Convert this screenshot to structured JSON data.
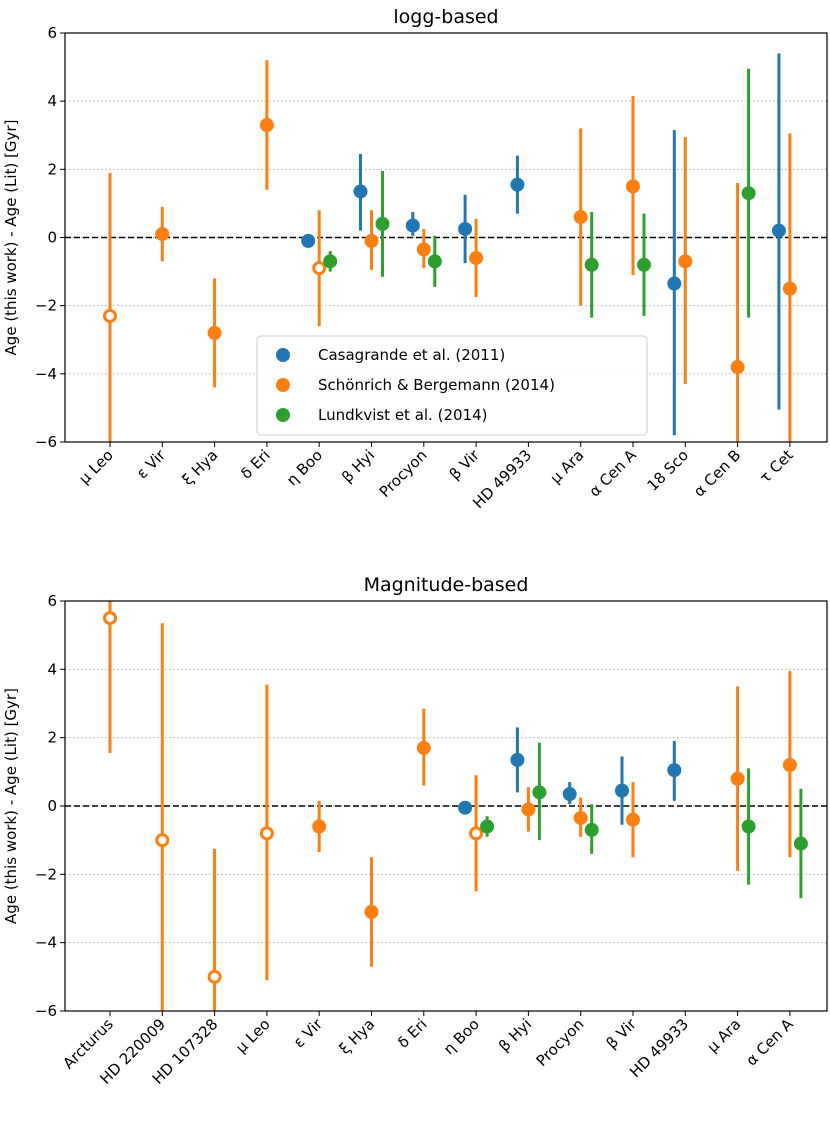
{
  "colors": {
    "casagrande": "#1f77b4",
    "schoenrich": "#ff7f0e",
    "lundkvist": "#2ca02c"
  },
  "legend": [
    {
      "key": "casagrande",
      "label": "Casagrande et al. (2011)"
    },
    {
      "key": "schoenrich",
      "label": "Schönrich & Bergemann (2014)"
    },
    {
      "key": "lundkvist",
      "label": "Lundkvist et al. (2014)"
    }
  ],
  "chart_data": [
    {
      "type": "scatter",
      "title": "logg-based",
      "ylabel": "Age (this work) - Age (Lit) [Gyr]",
      "ylim": [
        -6,
        6
      ],
      "yticks": [
        -6,
        -4,
        -2,
        0,
        2,
        4,
        6
      ],
      "grid": "horizontal-dotted",
      "legend_position": "lower-center",
      "categories": [
        "μ Leo",
        "ε Vir",
        "ξ Hya",
        "δ Eri",
        "η Boo",
        "β Hyi",
        "Procyon",
        "β Vir",
        "HD 49933",
        "μ Ara",
        "α Cen A",
        "18 Sco",
        "α Cen B",
        "τ Cet"
      ],
      "series": [
        {
          "name": "Casagrande et al. (2011)",
          "key": "casagrande",
          "points": [
            {
              "cat": 4,
              "y": -0.1,
              "lo": -0.1,
              "hi": -0.1
            },
            {
              "cat": 5,
              "y": 1.35,
              "lo": 0.2,
              "hi": 2.45
            },
            {
              "cat": 6,
              "y": 0.35,
              "lo": 0.05,
              "hi": 0.75
            },
            {
              "cat": 7,
              "y": 0.25,
              "lo": -0.75,
              "hi": 1.25
            },
            {
              "cat": 8,
              "y": 1.55,
              "lo": 0.7,
              "hi": 2.4
            },
            {
              "cat": 11,
              "y": -1.35,
              "lo": -5.8,
              "hi": 3.15
            },
            {
              "cat": 13,
              "y": 0.2,
              "lo": -5.05,
              "hi": 5.4
            }
          ]
        },
        {
          "name": "Schönrich & Bergemann (2014)",
          "key": "schoenrich",
          "points": [
            {
              "cat": 0,
              "y": -2.3,
              "lo": -6.2,
              "hi": 1.9,
              "open": true
            },
            {
              "cat": 1,
              "y": 0.1,
              "lo": -0.7,
              "hi": 0.9
            },
            {
              "cat": 2,
              "y": -2.8,
              "lo": -4.4,
              "hi": -1.2
            },
            {
              "cat": 3,
              "y": 3.3,
              "lo": 1.4,
              "hi": 5.2
            },
            {
              "cat": 4,
              "y": -0.9,
              "lo": -2.6,
              "hi": 0.8,
              "open": true
            },
            {
              "cat": 5,
              "y": -0.1,
              "lo": -0.95,
              "hi": 0.8
            },
            {
              "cat": 6,
              "y": -0.35,
              "lo": -0.9,
              "hi": 0.25
            },
            {
              "cat": 7,
              "y": -0.6,
              "lo": -1.75,
              "hi": 0.55
            },
            {
              "cat": 9,
              "y": 0.6,
              "lo": -2.0,
              "hi": 3.2
            },
            {
              "cat": 10,
              "y": 1.5,
              "lo": -1.1,
              "hi": 4.15
            },
            {
              "cat": 11,
              "y": -0.7,
              "lo": -4.3,
              "hi": 2.95
            },
            {
              "cat": 12,
              "y": -3.8,
              "lo": -6.2,
              "hi": 1.6
            },
            {
              "cat": 13,
              "y": -1.5,
              "lo": -6.2,
              "hi": 3.05
            }
          ]
        },
        {
          "name": "Lundkvist et al. (2014)",
          "key": "lundkvist",
          "points": [
            {
              "cat": 4,
              "y": -0.7,
              "lo": -1.0,
              "hi": -0.4
            },
            {
              "cat": 5,
              "y": 0.4,
              "lo": -1.15,
              "hi": 1.95
            },
            {
              "cat": 6,
              "y": -0.7,
              "lo": -1.45,
              "hi": 0.05
            },
            {
              "cat": 9,
              "y": -0.8,
              "lo": -2.35,
              "hi": 0.75
            },
            {
              "cat": 10,
              "y": -0.8,
              "lo": -2.3,
              "hi": 0.7
            },
            {
              "cat": 12,
              "y": 1.3,
              "lo": -2.35,
              "hi": 4.95
            }
          ]
        }
      ]
    },
    {
      "type": "scatter",
      "title": "Magnitude-based",
      "ylabel": "Age (this work) - Age (Lit) [Gyr]",
      "ylim": [
        -6,
        6
      ],
      "yticks": [
        -6,
        -4,
        -2,
        0,
        2,
        4,
        6
      ],
      "grid": "horizontal-dotted",
      "categories": [
        "Arcturus",
        "HD 220009",
        "HD 107328",
        "μ Leo",
        "ε Vir",
        "ξ Hya",
        "δ Eri",
        "η Boo",
        "β Hyi",
        "Procyon",
        "β Vir",
        "HD 49933",
        "μ Ara",
        "α Cen A"
      ],
      "series": [
        {
          "name": "Casagrande et al. (2011)",
          "key": "casagrande",
          "points": [
            {
              "cat": 7,
              "y": -0.05,
              "lo": -0.05,
              "hi": -0.05
            },
            {
              "cat": 8,
              "y": 1.35,
              "lo": 0.4,
              "hi": 2.3
            },
            {
              "cat": 9,
              "y": 0.35,
              "lo": 0.05,
              "hi": 0.7
            },
            {
              "cat": 10,
              "y": 0.45,
              "lo": -0.55,
              "hi": 1.45
            },
            {
              "cat": 11,
              "y": 1.05,
              "lo": 0.15,
              "hi": 1.9
            }
          ]
        },
        {
          "name": "Schönrich & Bergemann (2014)",
          "key": "schoenrich",
          "points": [
            {
              "cat": 0,
              "y": 5.5,
              "lo": 1.55,
              "hi": 6.2,
              "open": true
            },
            {
              "cat": 1,
              "y": -1.0,
              "lo": -6.2,
              "hi": 5.35,
              "open": true
            },
            {
              "cat": 2,
              "y": -5.0,
              "lo": -6.2,
              "hi": -1.25,
              "open": true
            },
            {
              "cat": 3,
              "y": -0.8,
              "lo": -5.1,
              "hi": 3.55,
              "open": true
            },
            {
              "cat": 4,
              "y": -0.6,
              "lo": -1.35,
              "hi": 0.15
            },
            {
              "cat": 5,
              "y": -3.1,
              "lo": -4.7,
              "hi": -1.5
            },
            {
              "cat": 6,
              "y": 1.7,
              "lo": 0.6,
              "hi": 2.85
            },
            {
              "cat": 7,
              "y": -0.8,
              "lo": -2.5,
              "hi": 0.9,
              "open": true
            },
            {
              "cat": 8,
              "y": -0.1,
              "lo": -0.75,
              "hi": 0.55
            },
            {
              "cat": 9,
              "y": -0.35,
              "lo": -0.9,
              "hi": 0.25
            },
            {
              "cat": 10,
              "y": -0.4,
              "lo": -1.5,
              "hi": 0.7
            },
            {
              "cat": 12,
              "y": 0.8,
              "lo": -1.9,
              "hi": 3.5
            },
            {
              "cat": 13,
              "y": 1.2,
              "lo": -1.5,
              "hi": 3.95
            }
          ]
        },
        {
          "name": "Lundkvist et al. (2014)",
          "key": "lundkvist",
          "points": [
            {
              "cat": 7,
              "y": -0.6,
              "lo": -0.9,
              "hi": -0.3
            },
            {
              "cat": 8,
              "y": 0.4,
              "lo": -1.0,
              "hi": 1.85
            },
            {
              "cat": 9,
              "y": -0.7,
              "lo": -1.4,
              "hi": 0.05
            },
            {
              "cat": 12,
              "y": -0.6,
              "lo": -2.3,
              "hi": 1.1
            },
            {
              "cat": 13,
              "y": -1.1,
              "lo": -2.7,
              "hi": 0.5
            }
          ]
        }
      ]
    }
  ]
}
